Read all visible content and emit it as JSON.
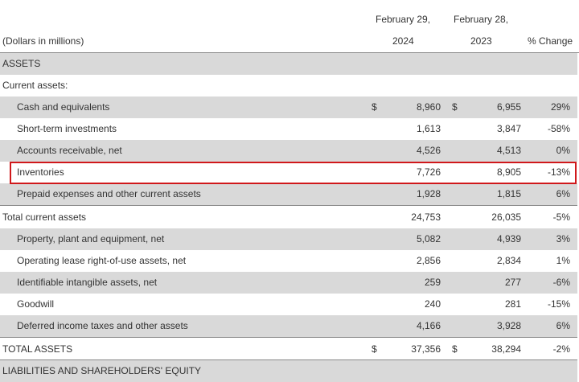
{
  "header": {
    "col1_line1": "February 29,",
    "col1_line2": "2024",
    "col2_line1": "February 28,",
    "col2_line2": "2023",
    "units_label": "(Dollars in millions)",
    "pct_label": "% Change"
  },
  "rows": [
    {
      "label": "ASSETS",
      "v1": "",
      "v2": "",
      "pct": "",
      "d1": "",
      "d2": ""
    },
    {
      "label": "Current assets:",
      "v1": "",
      "v2": "",
      "pct": "",
      "d1": "",
      "d2": ""
    },
    {
      "label": "Cash and equivalents",
      "d1": "$",
      "v1": "8,960",
      "d2": "$",
      "v2": "6,955",
      "pct": "29%"
    },
    {
      "label": "Short-term investments",
      "d1": "",
      "v1": "1,613",
      "d2": "",
      "v2": "3,847",
      "pct": "-58%"
    },
    {
      "label": "Accounts receivable, net",
      "d1": "",
      "v1": "4,526",
      "d2": "",
      "v2": "4,513",
      "pct": "0%"
    },
    {
      "label": "Inventories",
      "d1": "",
      "v1": "7,726",
      "d2": "",
      "v2": "8,905",
      "pct": "-13%"
    },
    {
      "label": "Prepaid expenses and other current assets",
      "d1": "",
      "v1": "1,928",
      "d2": "",
      "v2": "1,815",
      "pct": "6%"
    },
    {
      "label": "Total current assets",
      "d1": "",
      "v1": "24,753",
      "d2": "",
      "v2": "26,035",
      "pct": "-5%"
    },
    {
      "label": "Property, plant and equipment, net",
      "d1": "",
      "v1": "5,082",
      "d2": "",
      "v2": "4,939",
      "pct": "3%"
    },
    {
      "label": "Operating lease right-of-use assets, net",
      "d1": "",
      "v1": "2,856",
      "d2": "",
      "v2": "2,834",
      "pct": "1%"
    },
    {
      "label": "Identifiable intangible assets, net",
      "d1": "",
      "v1": "259",
      "d2": "",
      "v2": "277",
      "pct": "-6%"
    },
    {
      "label": "Goodwill",
      "d1": "",
      "v1": "240",
      "d2": "",
      "v2": "281",
      "pct": "-15%"
    },
    {
      "label": "Deferred income taxes and other assets",
      "d1": "",
      "v1": "4,166",
      "d2": "",
      "v2": "3,928",
      "pct": "6%"
    },
    {
      "label": "TOTAL ASSETS",
      "d1": "$",
      "v1": "37,356",
      "d2": "$",
      "v2": "38,294",
      "pct": "-2%"
    },
    {
      "label": "LIABILITIES AND SHAREHOLDERS' EQUITY",
      "v1": "",
      "v2": "",
      "pct": "",
      "d1": "",
      "d2": ""
    }
  ],
  "colors": {
    "shade": "#d9d9d9",
    "highlight_border": "#d0181b"
  }
}
